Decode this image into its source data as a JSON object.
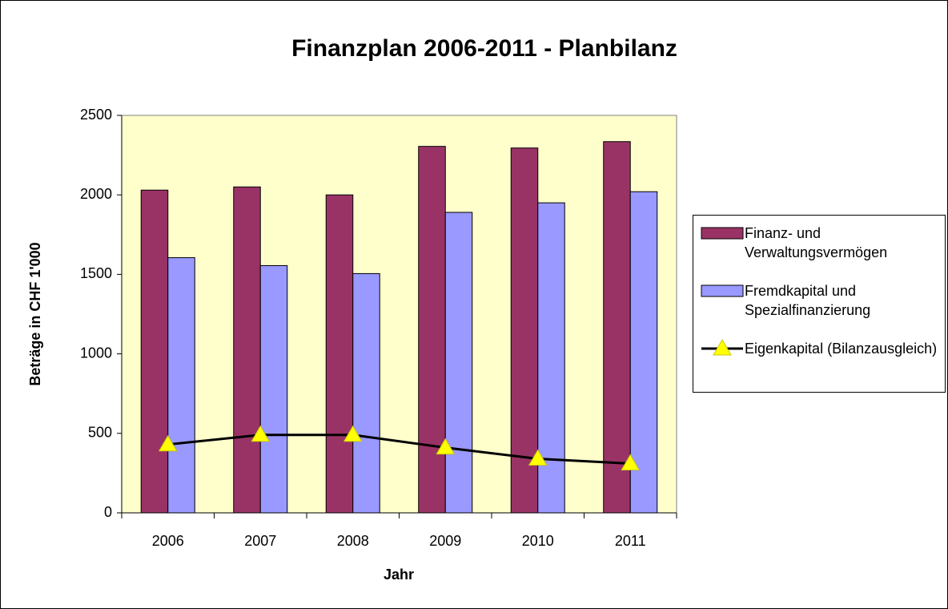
{
  "chart_data": {
    "type": "bar",
    "title": "Finanzplan 2006-2011 - Planbilanz",
    "x_label": "Jahr",
    "y_label": "Beträge in CHF 1'000",
    "categories": [
      "2006",
      "2007",
      "2008",
      "2009",
      "2010",
      "2011"
    ],
    "series": [
      {
        "name": "Finanz- und Verwaltungsvermögen",
        "color": "#993366",
        "type": "bar",
        "values": [
          2030,
          2050,
          2000,
          2305,
          2295,
          2335
        ]
      },
      {
        "name": "Fremdkapital und Spezialfinanzierung",
        "color": "#9999ff",
        "type": "bar",
        "values": [
          1605,
          1555,
          1505,
          1890,
          1950,
          2020
        ]
      },
      {
        "name": "Eigenkapital (Bilanzausgleich)",
        "color": "#000000",
        "marker_color": "#ffff00",
        "type": "line",
        "values": [
          430,
          490,
          490,
          410,
          340,
          310
        ]
      }
    ],
    "ylim": [
      0,
      2500
    ],
    "yticks": [
      0,
      500,
      1000,
      1500,
      2000,
      2500
    ],
    "plot_background": "#ffffcc",
    "legend": "right"
  }
}
